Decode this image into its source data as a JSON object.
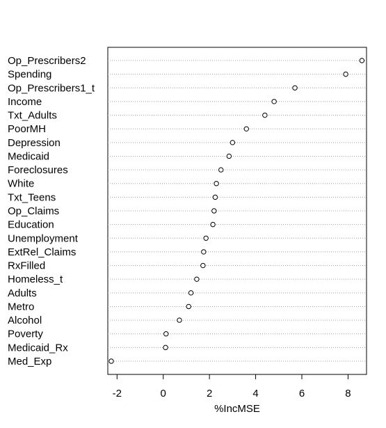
{
  "chart_data": {
    "type": "scatter",
    "title": "",
    "xlabel": "%IncMSE",
    "ylabel": "",
    "xlim": [
      -2.4,
      8.8
    ],
    "xticks": [
      -2,
      0,
      2,
      4,
      6,
      8
    ],
    "grid": "dotted horizontal lines",
    "legend": "none",
    "point_style": "open circle",
    "categories": [
      "Op_Prescribers2",
      "Spending",
      "Op_Prescribers1_t",
      "Income",
      "Txt_Adults",
      "PoorMH",
      "Depression",
      "Medicaid",
      "Foreclosures",
      "White",
      "Txt_Teens",
      "Op_Claims",
      "Education",
      "Unemployment",
      "ExtRel_Claims",
      "RxFilled",
      "Homeless_t",
      "Adults",
      "Metro",
      "Alcohol",
      "Poverty",
      "Medicaid_Rx",
      "Med_Exp"
    ],
    "values": [
      8.6,
      7.9,
      5.7,
      4.8,
      4.4,
      3.6,
      3.0,
      2.85,
      2.5,
      2.3,
      2.25,
      2.2,
      2.15,
      1.85,
      1.75,
      1.72,
      1.45,
      1.2,
      1.1,
      0.7,
      0.12,
      0.1,
      -2.25
    ]
  }
}
